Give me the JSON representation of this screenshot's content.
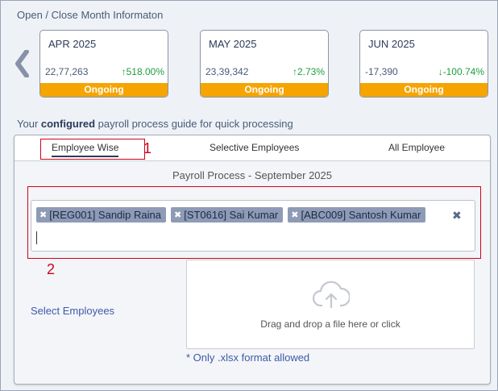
{
  "header": {
    "title": "Open / Close Month Informaton"
  },
  "months": [
    {
      "name": "APR 2025",
      "amount": "22,77,263",
      "change": "↑518.00%",
      "status": "Ongoing"
    },
    {
      "name": "MAY 2025",
      "amount": "23,39,342",
      "change": "↑2.73%",
      "status": "Ongoing"
    },
    {
      "name": "JUN 2025",
      "amount": "-17,390",
      "change": "↓-100.74%",
      "status": "Ongoing"
    }
  ],
  "guide": {
    "prefix": "Your ",
    "emphasis": "configured",
    "suffix": " payroll process guide for quick processing"
  },
  "tabs": [
    "Employee Wise",
    "Selective Employees",
    "All Employee"
  ],
  "annotations": {
    "one": "1",
    "two": "2"
  },
  "process": {
    "title": "Payroll Process - September 2025"
  },
  "selected_employees": [
    "[REG001] Sandip Raina",
    "[ST0616] Sai Kumar",
    "[ABC009] Santosh Kumar"
  ],
  "select_label": "Select Employees",
  "dropzone": {
    "text": "Drag and drop a file here or click"
  },
  "format_note": "* Only .xlsx format allowed",
  "colors": {
    "status": "#f5a400",
    "up": "#1e9e3c",
    "annotation": "#d0021b",
    "chip": "#8e9bb6"
  }
}
